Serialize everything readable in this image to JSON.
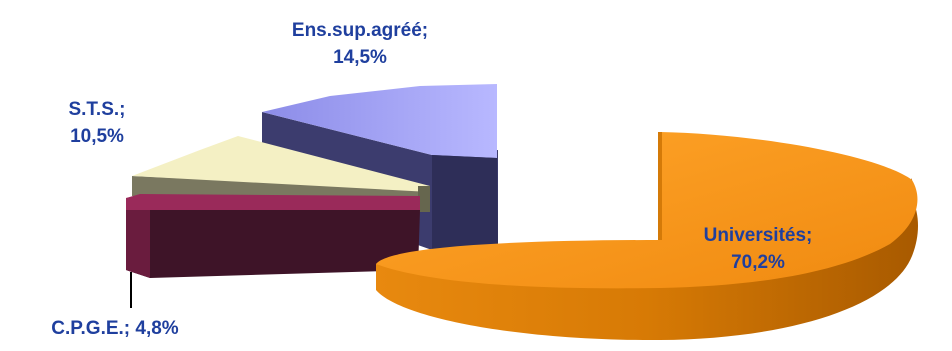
{
  "chart_data": {
    "type": "pie",
    "style": "3d-exploded",
    "legend": "none",
    "slices": [
      {
        "name": "Universités",
        "value": 70.2,
        "label_line1": "Universités;",
        "label_line2": "70,2%",
        "color": "#f7941d",
        "label_color": "#1f3f9e"
      },
      {
        "name": "Ens.sup.agréé",
        "value": 14.5,
        "label_line1": "Ens.sup.agréé;",
        "label_line2": "14,5%",
        "color": "#a0a0f0",
        "label_color": "#1f3f9e"
      },
      {
        "name": "S.T.S.",
        "value": 10.5,
        "label_line1": "S.T.S.;",
        "label_line2": "10,5%",
        "color": "#f4f0c4",
        "label_color": "#1f3f9e"
      },
      {
        "name": "C.P.G.E.",
        "value": 4.8,
        "label_line1": "C.P.G.E.; 4,8%",
        "label_line2": "",
        "color": "#9a2a5a",
        "label_color": "#1f3f9e"
      }
    ]
  }
}
